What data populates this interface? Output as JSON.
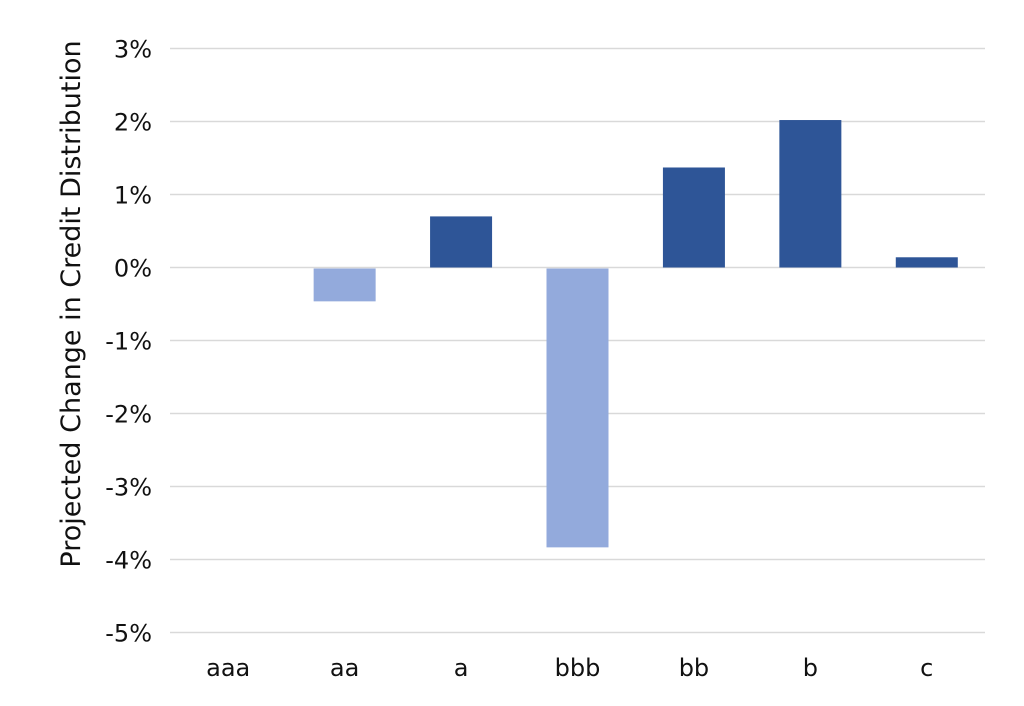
{
  "chart_data": {
    "type": "bar",
    "title": "",
    "xlabel": "",
    "ylabel": "Projected Change in Credit Distribution",
    "categories": [
      "aaa",
      "aa",
      "a",
      "bbb",
      "bb",
      "b",
      "c"
    ],
    "values": [
      0,
      -0.45,
      0.7,
      -3.82,
      1.37,
      2.02,
      0.14
    ],
    "ylim": [
      -5,
      3.6
    ],
    "yticks": [
      3,
      2,
      1,
      0,
      -1,
      -2,
      -3,
      -4,
      -5
    ],
    "ytick_labels": [
      "3%",
      "2%",
      "1%",
      "0%",
      "-1%",
      "-2%",
      "-3%",
      "-4%",
      "-5%"
    ],
    "grid": true,
    "legend": "none",
    "colors": {
      "positive": "#2e5597",
      "negative": "#93aadc"
    }
  }
}
